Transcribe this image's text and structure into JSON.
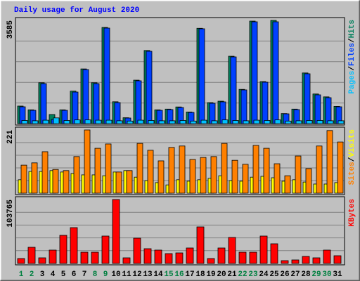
{
  "title": "Daily usage for August 2020",
  "legend_separator": "/",
  "chart_data": [
    {
      "type": "bar",
      "ylim": [
        0,
        3585
      ],
      "yticks": [
        3585
      ],
      "series": [
        {
          "name": "Hits",
          "color": "#00805c",
          "values": [
            610,
            480,
            1420,
            317,
            480,
            1130,
            1900,
            1420,
            3340,
            760,
            205,
            1510,
            2540,
            480,
            505,
            580,
            405,
            3310,
            730,
            780,
            2340,
            1190,
            3560,
            1460,
            3585,
            350,
            505,
            1760,
            1030,
            930,
            600
          ]
        },
        {
          "name": "Files",
          "color": "#0040ff",
          "values": [
            585,
            463,
            1390,
            146,
            463,
            1097,
            1878,
            1390,
            3317,
            732,
            195,
            1488,
            2512,
            463,
            488,
            561,
            390,
            3293,
            707,
            756,
            2317,
            1171,
            3536,
            1439,
            3536,
            341,
            488,
            1732,
            1000,
            902,
            585
          ]
        },
        {
          "name": "Pages",
          "color": "#00c0ff",
          "values": [
            110,
            100,
            120,
            200,
            110,
            130,
            130,
            120,
            120,
            100,
            90,
            120,
            110,
            100,
            100,
            110,
            90,
            120,
            100,
            130,
            110,
            100,
            120,
            110,
            130,
            90,
            100,
            110,
            110,
            100,
            100
          ]
        }
      ]
    },
    {
      "type": "bar",
      "ylim": [
        0,
        221
      ],
      "yticks": [
        221
      ],
      "series": [
        {
          "name": "Visits",
          "color": "#ffff00",
          "values": [
            47,
            76,
            76,
            79,
            74,
            69,
            64,
            64,
            61,
            74,
            79,
            56,
            44,
            37,
            29,
            47,
            42,
            47,
            52,
            61,
            44,
            42,
            56,
            59,
            54,
            42,
            47,
            39,
            32,
            32,
            37
          ]
        },
        {
          "name": "Sites",
          "color": "#ff8000",
          "values": [
            98,
            106,
            145,
            83,
            79,
            128,
            221,
            157,
            172,
            74,
            79,
            174,
            150,
            113,
            160,
            165,
            118,
            125,
            128,
            174,
            115,
            101,
            167,
            157,
            103,
            61,
            130,
            86,
            165,
            219,
            179
          ]
        }
      ]
    },
    {
      "type": "bar",
      "ylim": [
        0,
        103765
      ],
      "yticks": [
        103765
      ],
      "categories": [
        "1",
        "2",
        "3",
        "4",
        "5",
        "6",
        "7",
        "8",
        "9",
        "10",
        "11",
        "12",
        "13",
        "14",
        "15",
        "16",
        "17",
        "18",
        "19",
        "20",
        "21",
        "22",
        "23",
        "24",
        "25",
        "26",
        "27",
        "28",
        "29",
        "30",
        "31"
      ],
      "category_colors": [
        "#008040",
        "#008040",
        "#000000",
        "#000000",
        "#000000",
        "#000000",
        "#000000",
        "#008040",
        "#008040",
        "#000000",
        "#000000",
        "#000000",
        "#000000",
        "#000000",
        "#008040",
        "#008040",
        "#000000",
        "#000000",
        "#000000",
        "#000000",
        "#000000",
        "#008040",
        "#008040",
        "#000000",
        "#000000",
        "#000000",
        "#000000",
        "#000000",
        "#008040",
        "#008040",
        "#000000"
      ],
      "series": [
        {
          "name": "KBytes",
          "color": "#ff0000",
          "values": [
            7982,
            26226,
            9122,
            21665,
            45611,
            58155,
            18244,
            18244,
            44471,
            103765,
            9122,
            41050,
            23946,
            21665,
            15963,
            17104,
            25086,
            59295,
            7982,
            25086,
            42190,
            18244,
            18244,
            44471,
            31928,
            4561,
            5701,
            11403,
            9122,
            21665,
            12543
          ]
        }
      ]
    }
  ]
}
